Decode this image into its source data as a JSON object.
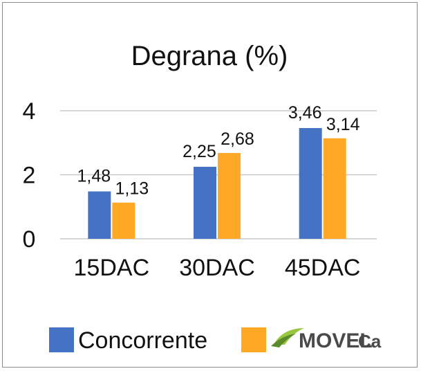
{
  "chart_data": {
    "type": "bar",
    "title": "Degrana (%)",
    "categories": [
      "15DAC",
      "30DAC",
      "45DAC"
    ],
    "series": [
      {
        "name": "Concorrente",
        "values": [
          1.48,
          2.25,
          3.46
        ],
        "labels": [
          "1,48",
          "2,25",
          "3,46"
        ],
        "color": "#4472C4"
      },
      {
        "name": "MOVEL Ca",
        "values": [
          1.13,
          2.68,
          3.14
        ],
        "labels": [
          "1,13",
          "2,68",
          "3,14"
        ],
        "color": "#FFA826"
      }
    ],
    "yticks": [
      "0",
      "2",
      "4"
    ],
    "ylim": [
      0,
      4.2
    ],
    "grid": true,
    "legend": "bottom",
    "gridline_color": "#c8c8c8"
  },
  "legend": {
    "concorrente_label": "Concorrente",
    "brand_main": "MOVEL",
    "brand_sub": "Ca",
    "brand_logo_icon": "leaf-swoosh-icon"
  }
}
